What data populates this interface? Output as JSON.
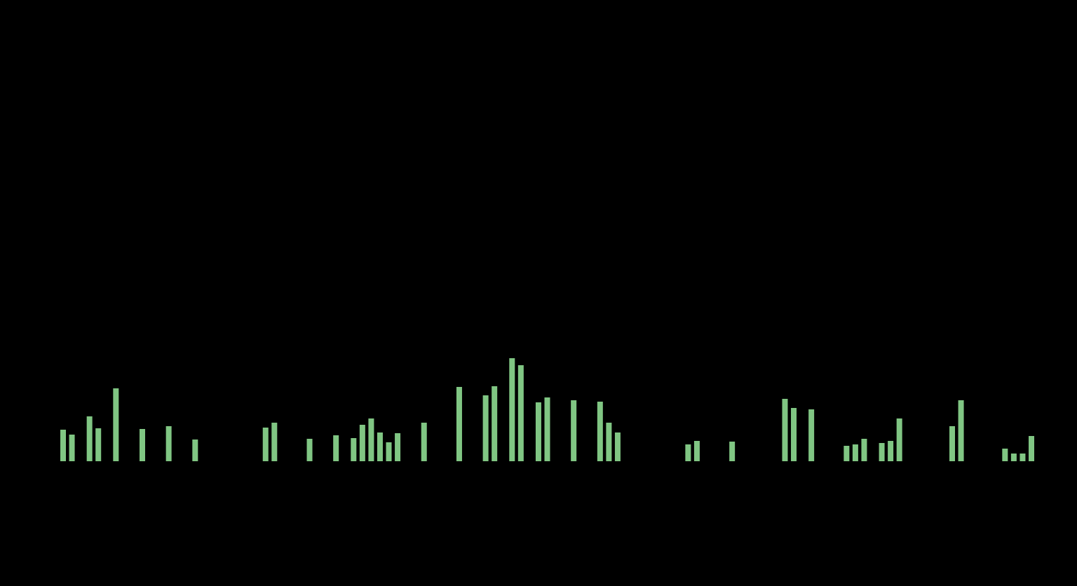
{
  "chart_data": {
    "type": "bar",
    "color": "#80c683",
    "x": [
      0,
      1,
      3,
      4,
      6,
      9,
      12,
      15,
      23,
      24,
      28,
      31,
      33,
      34,
      35,
      36,
      37,
      38,
      41,
      45,
      48,
      49,
      51,
      52,
      54,
      55,
      58,
      61,
      62,
      63,
      71,
      72,
      76,
      82,
      83,
      85,
      89,
      90,
      91,
      93,
      94,
      95,
      101,
      102,
      107,
      108,
      109,
      110
    ],
    "values": [
      45,
      38,
      64,
      47,
      104,
      46,
      50,
      31,
      48,
      55,
      32,
      37,
      33,
      52,
      61,
      41,
      27,
      40,
      55,
      106,
      94,
      107,
      147,
      137,
      84,
      91,
      87,
      85,
      55,
      41,
      24,
      29,
      28,
      89,
      76,
      74,
      22,
      24,
      32,
      26,
      29,
      61,
      50,
      87,
      18,
      11,
      11,
      36
    ],
    "xlim": [
      0,
      110
    ],
    "ylim": [
      0,
      200
    ]
  }
}
